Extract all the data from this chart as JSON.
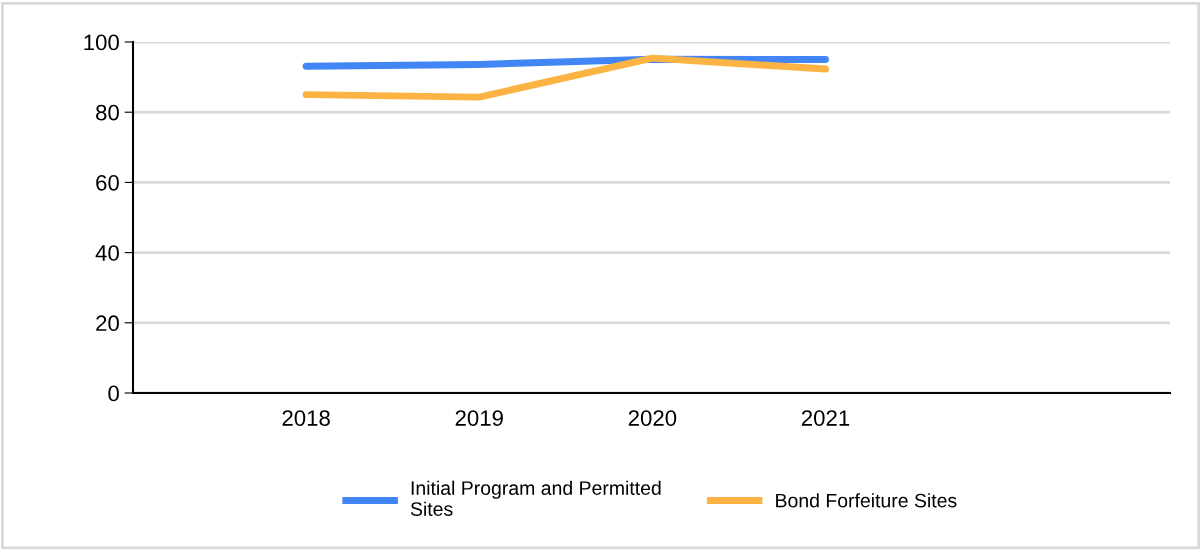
{
  "chart_data": {
    "type": "line",
    "categories": [
      "2018",
      "2019",
      "2020",
      "2021"
    ],
    "series": [
      {
        "name": "Initial Program and Permitted\nSites",
        "color": "#4285f4",
        "values": [
          93.1,
          93.6,
          95.1,
          95.0
        ]
      },
      {
        "name": "Bond Forfeiture Sites",
        "color": "#fbb444",
        "values": [
          85.0,
          84.3,
          95.4,
          92.3
        ]
      }
    ],
    "ylim": [
      0,
      100
    ],
    "yticks": [
      0,
      20,
      40,
      60,
      80,
      100
    ],
    "grid": "y",
    "legend": "bottom",
    "marker": "none",
    "line_style": "solid"
  }
}
